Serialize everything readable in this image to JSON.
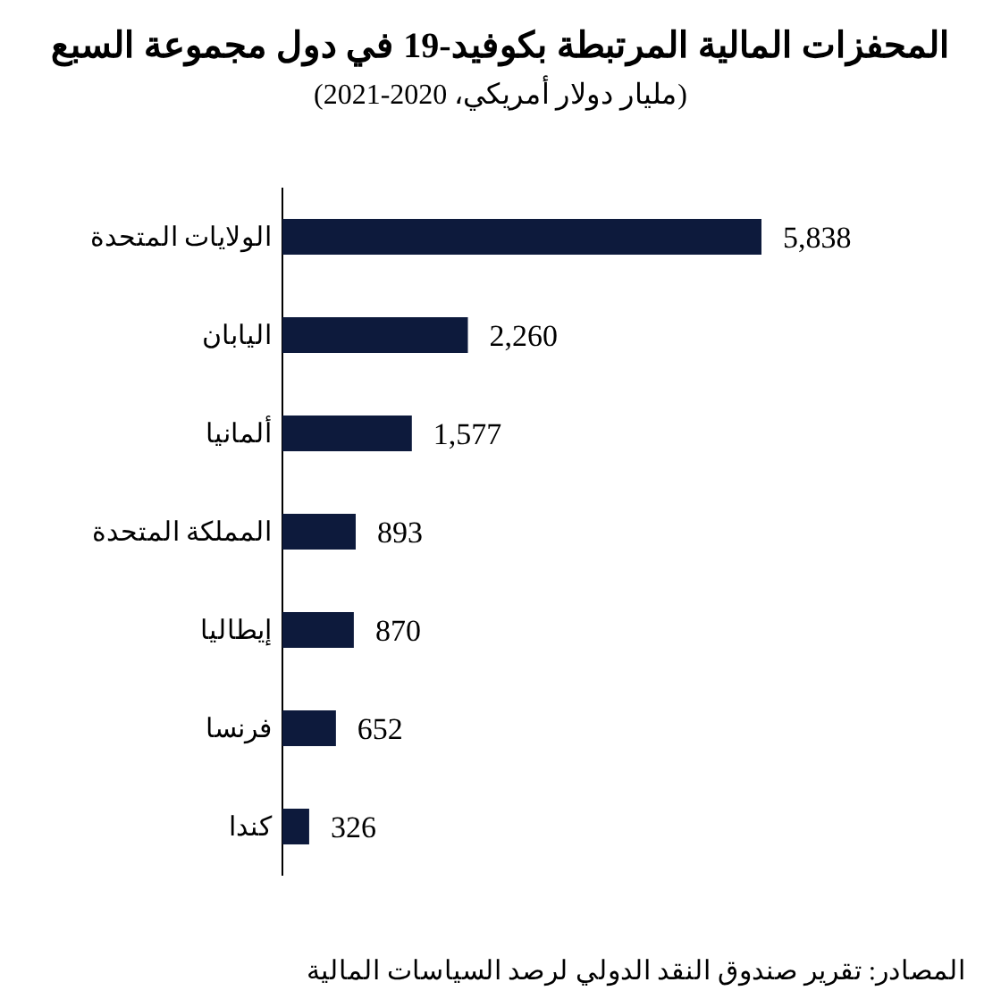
{
  "chart_data": {
    "type": "bar",
    "orientation": "horizontal",
    "title": "المحفزات المالية المرتبطة بكوفيد-19 في دول مجموعة السبع",
    "subtitle": "(مليار دولار أمريكي، 2020-2021)",
    "categories": [
      "الولايات المتحدة",
      "اليابان",
      "ألمانيا",
      "المملكة المتحدة",
      "إيطاليا",
      "فرنسا",
      "كندا"
    ],
    "values": [
      5838,
      2260,
      1577,
      893,
      870,
      652,
      326
    ],
    "color": "#0d1a3c",
    "value_labels": [
      "5,838",
      "2,260",
      "1,577",
      "893",
      "870",
      "652",
      "326"
    ],
    "annotations": [
      "المصادر: تقرير صندوق النقد الدولي لرصد السياسات المالية"
    ]
  }
}
